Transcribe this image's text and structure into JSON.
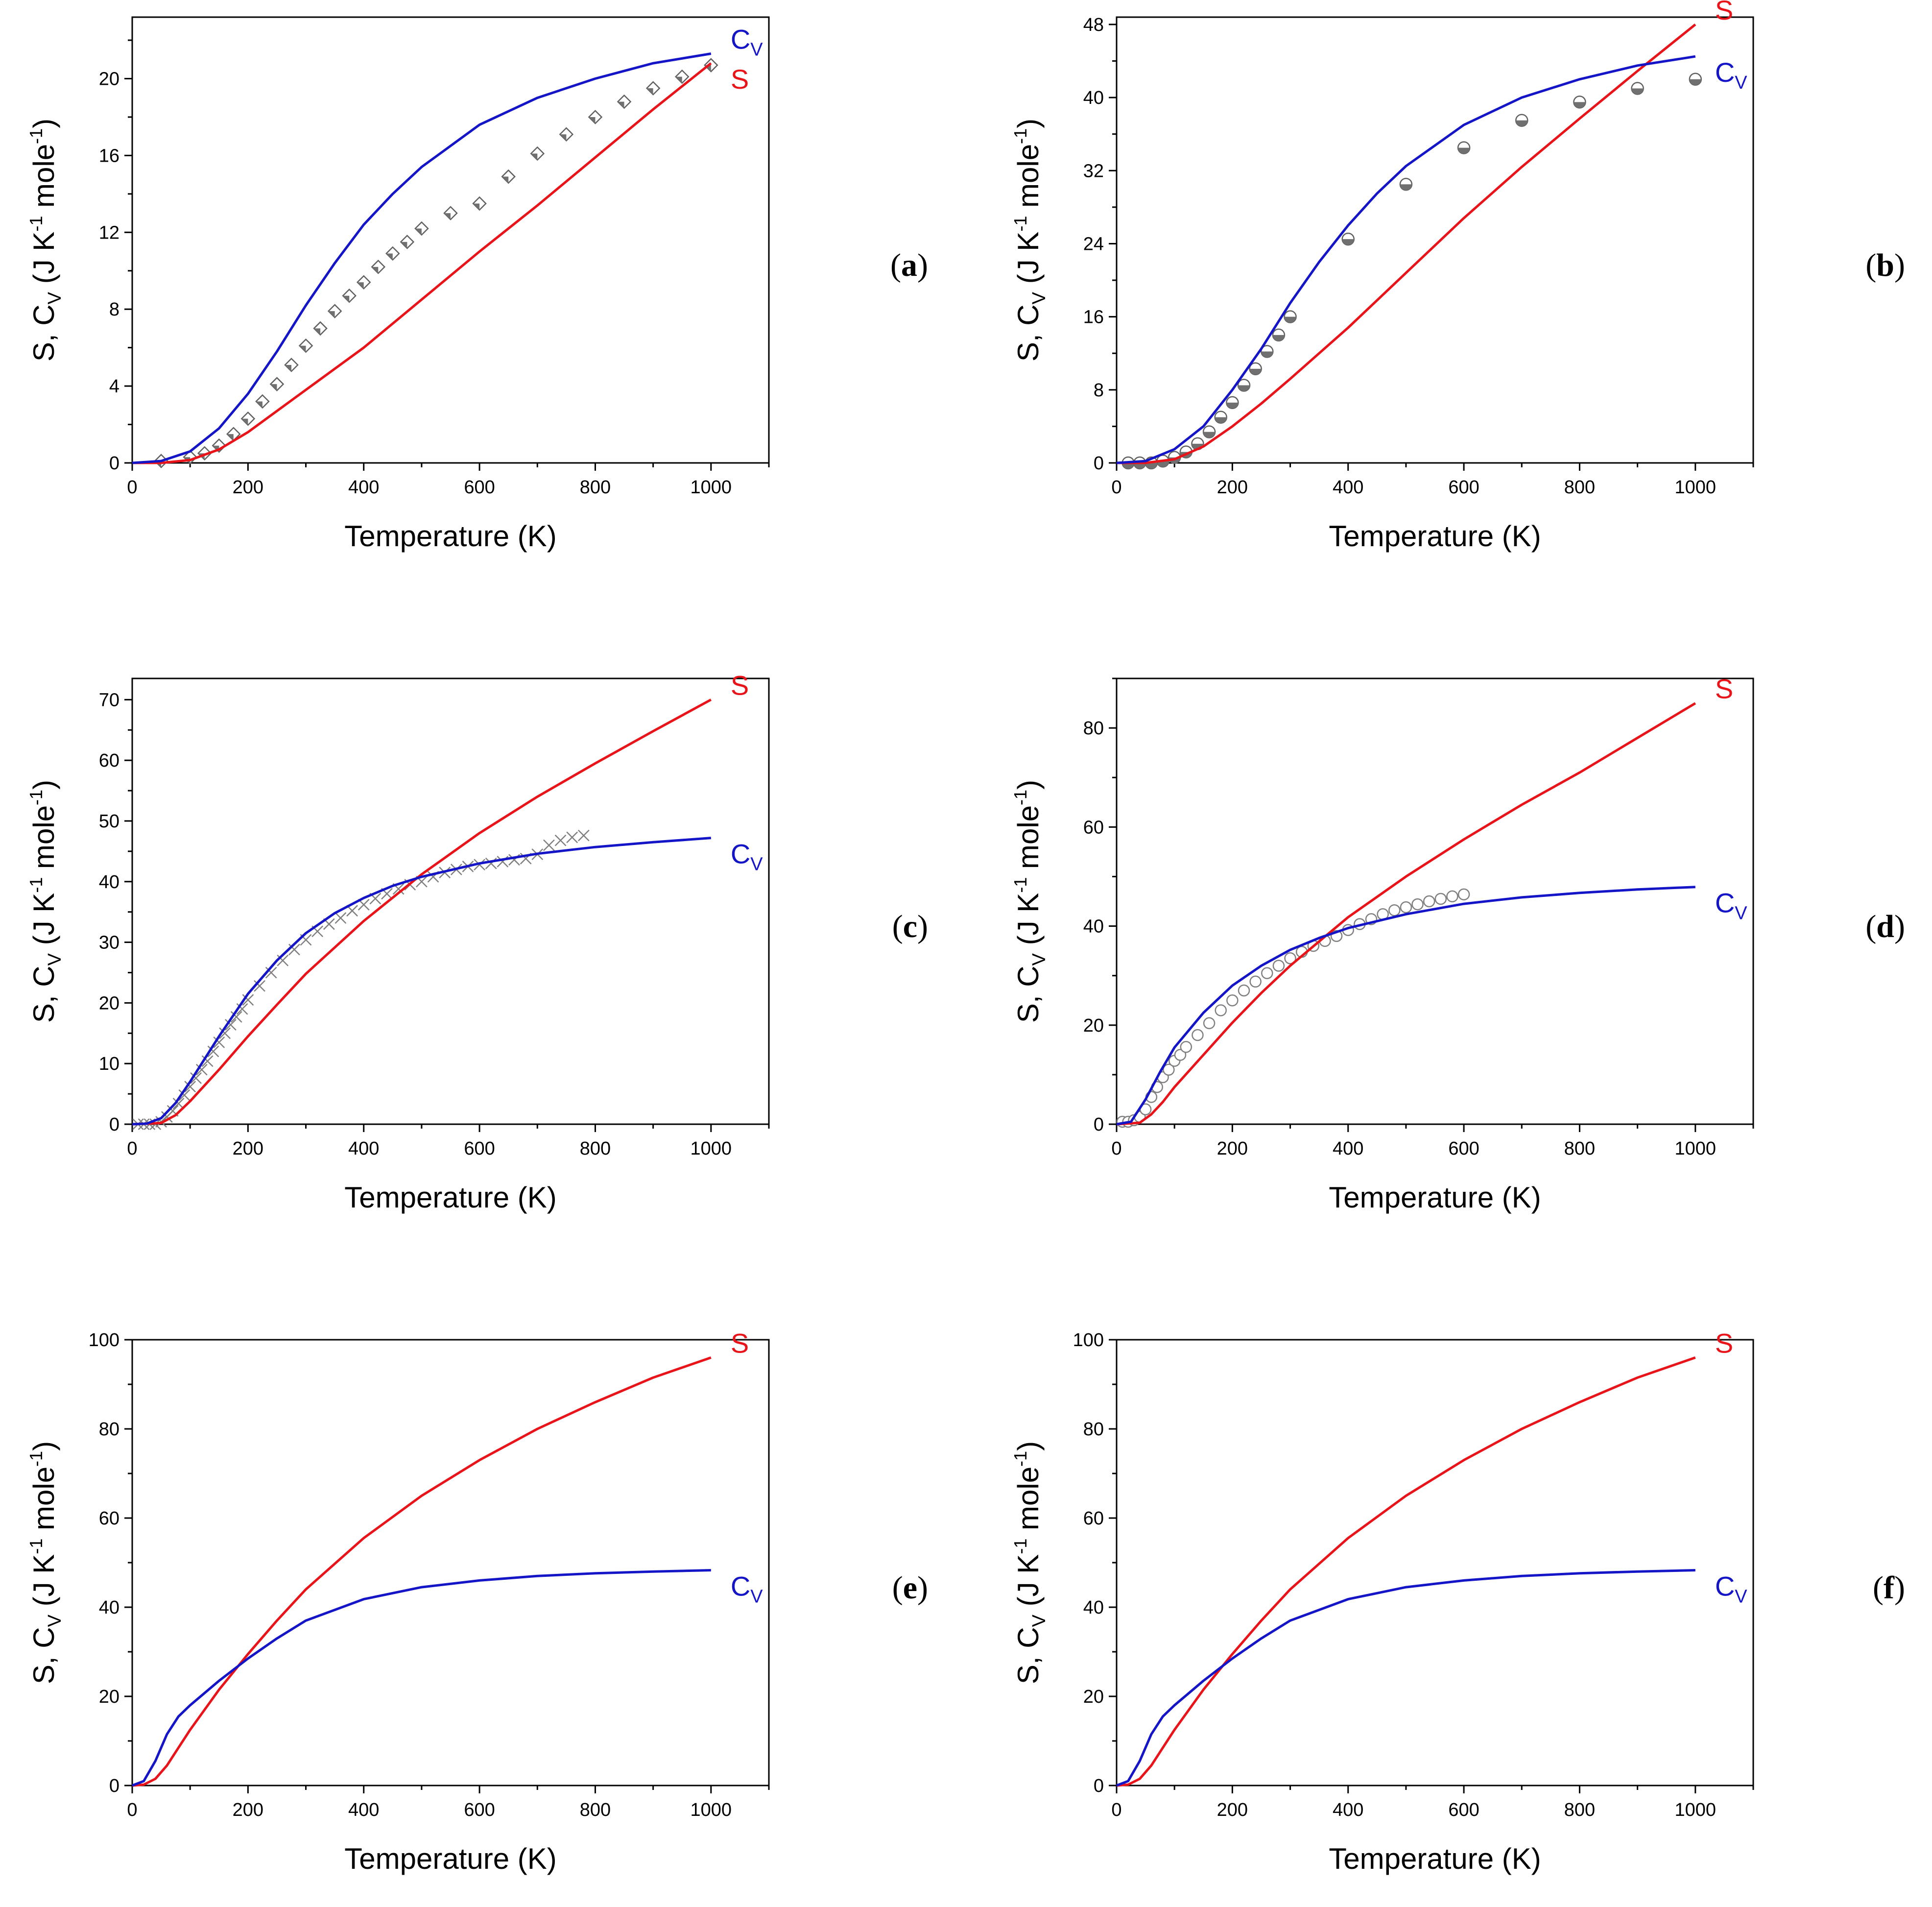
{
  "colors": {
    "S": "#e8141a",
    "Cv": "#1515c8",
    "data": "#808080",
    "axis": "#000000"
  },
  "y_title": {
    "main": "S, C",
    "sub": "V",
    "mid": "  (J K",
    "sup": "-1",
    "end": " mole",
    "sup2": "-1",
    "close": ")"
  },
  "chart_data": [
    {
      "type": "line",
      "panel": "a",
      "xlabel": "Temperature (K)",
      "xlim": [
        0,
        1100
      ],
      "ylim": [
        0,
        23.2
      ],
      "xticks": [
        0,
        200,
        400,
        600,
        800,
        1000
      ],
      "yticks": [
        0,
        4,
        8,
        12,
        16,
        20
      ],
      "labels": {
        "S": "S",
        "Cv": "C",
        "Cv_sub": "V"
      },
      "label_pos": {
        "S": "below",
        "Cv": "above"
      },
      "marker": "diamond",
      "series": [
        {
          "name": "Cv",
          "x": [
            0,
            50,
            100,
            150,
            200,
            250,
            300,
            350,
            400,
            450,
            500,
            600,
            700,
            800,
            900,
            1000
          ],
          "y": [
            0,
            0.1,
            0.6,
            1.8,
            3.6,
            5.8,
            8.2,
            10.4,
            12.4,
            14.0,
            15.4,
            17.6,
            19.0,
            20.0,
            20.8,
            21.3
          ]
        },
        {
          "name": "S",
          "x": [
            0,
            50,
            100,
            150,
            200,
            300,
            400,
            500,
            600,
            700,
            800,
            900,
            1000
          ],
          "y": [
            0,
            0,
            0.15,
            0.7,
            1.6,
            3.8,
            6.0,
            8.5,
            11.0,
            13.4,
            15.9,
            18.4,
            20.8
          ]
        },
        {
          "name": "data",
          "x": [
            50,
            100,
            125,
            150,
            175,
            200,
            225,
            250,
            275,
            300,
            325,
            350,
            375,
            400,
            425,
            450,
            475,
            500,
            550,
            600,
            650,
            700,
            750,
            800,
            850,
            900,
            950,
            1000
          ],
          "y": [
            0.1,
            0.3,
            0.5,
            0.9,
            1.5,
            2.3,
            3.2,
            4.1,
            5.1,
            6.1,
            7.0,
            7.9,
            8.7,
            9.4,
            10.2,
            10.9,
            11.5,
            12.2,
            13.0,
            13.5,
            14.9,
            16.1,
            17.1,
            18.0,
            18.8,
            19.5,
            20.1,
            20.7
          ]
        }
      ]
    },
    {
      "type": "line",
      "panel": "b",
      "xlabel": "Temperature (K)",
      "xlim": [
        0,
        1100
      ],
      "ylim": [
        0,
        48.8
      ],
      "xticks": [
        0,
        200,
        400,
        600,
        800,
        1000
      ],
      "yticks": [
        0,
        8,
        16,
        24,
        32,
        40,
        48
      ],
      "labels": {
        "S": "S",
        "Cv": "C",
        "Cv_sub": "V"
      },
      "label_pos": {
        "S": "above",
        "Cv": "below"
      },
      "marker": "halfcircle",
      "series": [
        {
          "name": "Cv",
          "x": [
            0,
            50,
            100,
            150,
            200,
            250,
            300,
            350,
            400,
            450,
            500,
            600,
            700,
            800,
            900,
            1000
          ],
          "y": [
            0,
            0.2,
            1.5,
            4.0,
            8.0,
            12.5,
            17.5,
            22.0,
            26.0,
            29.5,
            32.5,
            37.0,
            40.0,
            42.0,
            43.5,
            44.5
          ]
        },
        {
          "name": "S",
          "x": [
            0,
            50,
            100,
            150,
            200,
            250,
            300,
            400,
            500,
            600,
            700,
            800,
            900,
            1000
          ],
          "y": [
            0,
            0,
            0.4,
            1.8,
            4.0,
            6.5,
            9.2,
            14.8,
            20.8,
            26.8,
            32.4,
            37.7,
            42.9,
            48.0
          ]
        },
        {
          "name": "data",
          "x": [
            20,
            40,
            60,
            80,
            100,
            120,
            140,
            160,
            180,
            200,
            220,
            240,
            260,
            280,
            300,
            400,
            500,
            600,
            700,
            800,
            900,
            1000
          ],
          "y": [
            0,
            0,
            0,
            0.2,
            0.6,
            1.2,
            2.1,
            3.4,
            5.0,
            6.6,
            8.5,
            10.3,
            12.2,
            14.0,
            16.0,
            24.5,
            30.5,
            34.5,
            37.5,
            39.5,
            41.0,
            42.0
          ]
        }
      ]
    },
    {
      "type": "line",
      "panel": "c",
      "xlabel": "Temperature (K)",
      "xlim": [
        0,
        1100
      ],
      "ylim": [
        0,
        73.5
      ],
      "xticks": [
        0,
        200,
        400,
        600,
        800,
        1000
      ],
      "yticks": [
        0,
        10,
        20,
        30,
        40,
        50,
        60,
        70
      ],
      "labels": {
        "S": "S",
        "Cv": "C",
        "Cv_sub": "V"
      },
      "label_pos": {
        "S": "above",
        "Cv": "below"
      },
      "marker": "cross",
      "series": [
        {
          "name": "Cv",
          "x": [
            0,
            25,
            50,
            75,
            100,
            150,
            200,
            250,
            300,
            350,
            400,
            450,
            500,
            600,
            700,
            800,
            900,
            1000
          ],
          "y": [
            0,
            0.1,
            1.0,
            3.5,
            7.0,
            14.5,
            21.5,
            27.0,
            31.5,
            34.8,
            37.3,
            39.3,
            40.8,
            43.0,
            44.6,
            45.7,
            46.5,
            47.2
          ]
        },
        {
          "name": "S",
          "x": [
            0,
            50,
            75,
            100,
            150,
            200,
            250,
            300,
            400,
            500,
            600,
            700,
            800,
            900,
            1000
          ],
          "y": [
            0,
            0.2,
            1.5,
            3.8,
            9.0,
            14.5,
            19.7,
            24.8,
            33.5,
            41.2,
            48.0,
            54.0,
            59.5,
            64.8,
            70.0
          ]
        },
        {
          "name": "data",
          "x": [
            10,
            20,
            30,
            40,
            50,
            60,
            70,
            80,
            90,
            100,
            110,
            120,
            130,
            140,
            150,
            160,
            170,
            180,
            190,
            200,
            220,
            240,
            260,
            280,
            300,
            320,
            340,
            360,
            380,
            400,
            420,
            440,
            460,
            480,
            500,
            520,
            540,
            560,
            580,
            600,
            620,
            640,
            660,
            680,
            700,
            720,
            740,
            760,
            780
          ],
          "y": [
            0,
            0,
            0,
            0,
            0.4,
            1.2,
            2.2,
            3.4,
            4.8,
            6.2,
            7.6,
            9.0,
            10.4,
            12.0,
            13.5,
            15.0,
            16.4,
            17.7,
            19.0,
            20.5,
            22.8,
            25.0,
            27.0,
            28.8,
            30.4,
            31.8,
            33.0,
            34.0,
            35.2,
            36.2,
            37.2,
            38.0,
            38.8,
            39.5,
            40.0,
            40.8,
            41.5,
            42.0,
            42.5,
            42.8,
            43.0,
            43.3,
            43.6,
            43.8,
            44.5,
            46.0,
            46.8,
            47.3,
            47.6
          ]
        }
      ]
    },
    {
      "type": "line",
      "panel": "d",
      "xlabel": "Temperature (K)",
      "xlim": [
        0,
        1100
      ],
      "ylim": [
        0,
        90
      ],
      "xticks": [
        0,
        200,
        400,
        600,
        800,
        1000
      ],
      "yticks": [
        0,
        20,
        40,
        60,
        80
      ],
      "labels": {
        "S": "S",
        "Cv": "C",
        "Cv_sub": "V"
      },
      "label_pos": {
        "S": "above",
        "Cv": "below"
      },
      "marker": "circle",
      "series": [
        {
          "name": "Cv",
          "x": [
            0,
            25,
            50,
            75,
            100,
            150,
            200,
            250,
            300,
            350,
            400,
            500,
            600,
            700,
            800,
            900,
            1000
          ],
          "y": [
            0,
            0.5,
            5.0,
            10.5,
            15.5,
            22.5,
            28.0,
            32.0,
            35.2,
            37.6,
            39.6,
            42.4,
            44.5,
            45.8,
            46.7,
            47.4,
            47.9
          ]
        },
        {
          "name": "S",
          "x": [
            0,
            40,
            60,
            80,
            100,
            150,
            200,
            250,
            300,
            400,
            500,
            600,
            700,
            800,
            900,
            1000
          ],
          "y": [
            0,
            0.3,
            2.0,
            4.5,
            7.5,
            14.0,
            20.5,
            26.5,
            32.0,
            41.8,
            50.0,
            57.5,
            64.5,
            71.0,
            78.0,
            85.0
          ]
        },
        {
          "name": "data",
          "x": [
            10,
            20,
            30,
            40,
            50,
            60,
            70,
            80,
            90,
            100,
            110,
            120,
            140,
            160,
            180,
            200,
            220,
            240,
            260,
            280,
            300,
            320,
            340,
            360,
            380,
            400,
            420,
            440,
            460,
            480,
            500,
            520,
            540,
            560,
            580,
            600
          ],
          "y": [
            0.5,
            0.5,
            0.8,
            1.5,
            3.0,
            5.5,
            7.5,
            9.5,
            11.0,
            12.8,
            14.0,
            15.6,
            18.0,
            20.4,
            23.0,
            25.0,
            27.0,
            28.8,
            30.5,
            32.0,
            33.5,
            34.8,
            36.0,
            37.0,
            38.0,
            39.2,
            40.4,
            41.4,
            42.4,
            43.2,
            43.8,
            44.4,
            45.0,
            45.5,
            46.0,
            46.4
          ]
        }
      ]
    },
    {
      "type": "line",
      "panel": "e",
      "xlabel": "Temperature (K)",
      "xlim": [
        0,
        1100
      ],
      "ylim": [
        0,
        100
      ],
      "xticks": [
        0,
        200,
        400,
        600,
        800,
        1000
      ],
      "yticks": [
        0,
        20,
        40,
        60,
        80,
        100
      ],
      "labels": {
        "S": "S",
        "Cv": "C",
        "Cv_sub": "V"
      },
      "label_pos": {
        "S": "above",
        "Cv": "below"
      },
      "marker": "none",
      "series": [
        {
          "name": "Cv",
          "x": [
            0,
            20,
            40,
            60,
            80,
            100,
            150,
            200,
            250,
            300,
            400,
            500,
            600,
            700,
            800,
            900,
            1000
          ],
          "y": [
            0,
            1.0,
            5.5,
            11.5,
            15.5,
            18.0,
            23.5,
            28.5,
            33.0,
            37.0,
            41.8,
            44.5,
            46.0,
            47.0,
            47.6,
            48.0,
            48.3
          ]
        },
        {
          "name": "S",
          "x": [
            0,
            20,
            40,
            60,
            80,
            100,
            150,
            200,
            250,
            300,
            400,
            500,
            600,
            700,
            800,
            900,
            1000
          ],
          "y": [
            0,
            0.2,
            1.5,
            4.5,
            8.5,
            12.5,
            21.5,
            29.5,
            37.0,
            44.0,
            55.5,
            65.0,
            73.0,
            80.0,
            86.0,
            91.5,
            96.0
          ]
        }
      ]
    },
    {
      "type": "line",
      "panel": "f",
      "xlabel": "Temperature (K)",
      "xlim": [
        0,
        1100
      ],
      "ylim": [
        0,
        100
      ],
      "xticks": [
        0,
        200,
        400,
        600,
        800,
        1000
      ],
      "yticks": [
        0,
        20,
        40,
        60,
        80,
        100
      ],
      "labels": {
        "S": "S",
        "Cv": "C",
        "Cv_sub": "V"
      },
      "label_pos": {
        "S": "above",
        "Cv": "below"
      },
      "marker": "none",
      "series": [
        {
          "name": "Cv",
          "x": [
            0,
            20,
            40,
            60,
            80,
            100,
            150,
            200,
            250,
            300,
            400,
            500,
            600,
            700,
            800,
            900,
            1000
          ],
          "y": [
            0,
            1.0,
            5.5,
            11.5,
            15.5,
            18.0,
            23.5,
            28.5,
            33.0,
            37.0,
            41.8,
            44.5,
            46.0,
            47.0,
            47.6,
            48.0,
            48.3
          ]
        },
        {
          "name": "S",
          "x": [
            0,
            20,
            40,
            60,
            80,
            100,
            150,
            200,
            250,
            300,
            400,
            500,
            600,
            700,
            800,
            900,
            1000
          ],
          "y": [
            0,
            0.2,
            1.5,
            4.5,
            8.5,
            12.5,
            21.5,
            29.5,
            37.0,
            44.0,
            55.5,
            65.0,
            73.0,
            80.0,
            86.0,
            91.5,
            96.0
          ]
        }
      ]
    }
  ]
}
